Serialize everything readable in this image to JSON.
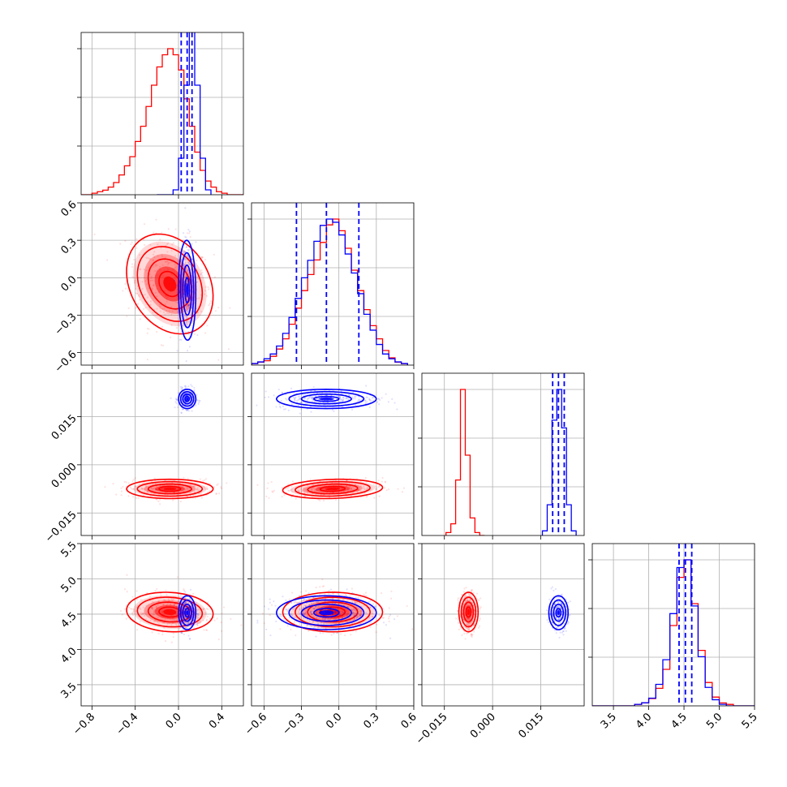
{
  "chart_data": {
    "type": "corner",
    "grid": true,
    "colors": {
      "series_a": "#ff0000",
      "series_b": "#0000ff"
    },
    "parameters": [
      {
        "ticks": [
          -0.8,
          -0.4,
          0.0,
          0.4
        ],
        "tick_labels": [
          "−0.8",
          "−0.4",
          "0.0",
          "0.4"
        ],
        "range": [
          -0.9,
          0.6
        ]
      },
      {
        "ticks": [
          -0.6,
          -0.3,
          0.0,
          0.3,
          0.6
        ],
        "tick_labels": [
          "−0.6",
          "−0.3",
          "0.0",
          "0.3",
          "0.6"
        ],
        "range": [
          -0.7,
          0.6
        ]
      },
      {
        "ticks": [
          -0.015,
          0.0,
          0.015
        ],
        "tick_labels": [
          "−0.015",
          "0.000",
          "0.015"
        ],
        "range": [
          -0.022,
          0.0285
        ]
      },
      {
        "ticks": [
          3.5,
          4.0,
          4.5,
          5.0,
          5.5
        ],
        "tick_labels": [
          "3.5",
          "4.0",
          "4.5",
          "5.0",
          "5.5"
        ],
        "range": [
          3.2,
          5.5
        ]
      }
    ],
    "series": [
      {
        "color": "#ff0000",
        "means": [
          -0.08,
          -0.05,
          -0.0075,
          4.53
        ],
        "stds": [
          0.2,
          0.2,
          0.0015,
          0.14
        ],
        "covariance_offdiag": [
          [
            0,
            1,
            -0.25
          ],
          [
            0,
            3,
            -0.1
          ],
          [
            1,
            2,
            0.15
          ]
        ],
        "histograms": [
          {
            "edges": [
              -0.9,
              -0.85,
              -0.8,
              -0.75,
              -0.7,
              -0.65,
              -0.6,
              -0.55,
              -0.5,
              -0.45,
              -0.4,
              -0.35,
              -0.3,
              -0.25,
              -0.2,
              -0.15,
              -0.1,
              -0.05,
              0.0,
              0.05,
              0.1,
              0.15,
              0.2,
              0.25,
              0.3,
              0.35,
              0.4,
              0.45,
              0.5,
              0.55,
              0.6
            ],
            "counts": [
              0,
              0,
              1,
              2,
              3,
              5,
              8,
              13,
              19,
              25,
              35,
              45,
              58,
              72,
              84,
              92,
              96,
              92,
              82,
              63,
              45,
              28,
              16,
              9,
              5,
              2,
              1,
              0,
              0,
              0
            ]
          },
          {
            "edges": [
              -0.7,
              -0.65,
              -0.6,
              -0.55,
              -0.5,
              -0.45,
              -0.4,
              -0.35,
              -0.3,
              -0.25,
              -0.2,
              -0.15,
              -0.1,
              -0.05,
              0.0,
              0.05,
              0.1,
              0.15,
              0.2,
              0.25,
              0.3,
              0.35,
              0.4,
              0.45,
              0.5,
              0.55
            ],
            "counts": [
              1,
              2,
              3,
              6,
              11,
              18,
              28,
              39,
              51,
              62,
              72,
              84,
              96,
              100,
              92,
              80,
              65,
              51,
              38,
              27,
              18,
              10,
              5,
              2,
              1
            ]
          },
          {
            "edges": [
              -0.0145,
              -0.013,
              -0.0115,
              -0.01,
              -0.0085,
              -0.007,
              -0.0055,
              -0.004,
              -0.0025
            ],
            "counts": [
              2,
              8,
              38,
              100,
              55,
              12,
              2,
              0
            ]
          },
          {
            "edges": [
              3.2,
              3.3,
              3.4,
              3.5,
              3.6,
              3.7,
              3.8,
              3.9,
              4.0,
              4.1,
              4.2,
              4.3,
              4.4,
              4.5,
              4.6,
              4.7,
              4.8,
              4.9,
              5.0,
              5.1,
              5.2,
              5.3,
              5.4,
              5.5
            ],
            "counts": [
              0,
              0,
              0,
              0,
              0,
              0,
              1,
              2,
              5,
              12,
              25,
              55,
              88,
              100,
              70,
              38,
              16,
              6,
              2,
              1,
              0,
              0,
              0
            ]
          }
        ]
      },
      {
        "color": "#0000ff",
        "means": [
          0.08,
          -0.1,
          0.0205,
          4.52
        ],
        "stds": [
          0.04,
          0.2,
          0.0015,
          0.12
        ],
        "quantiles": [
          [
            0.025,
            0.08,
            0.125
          ],
          [
            -0.34,
            -0.1,
            0.16
          ],
          [
            0.0187,
            0.0205,
            0.0223
          ],
          [
            4.43,
            4.52,
            4.61
          ]
        ],
        "covariance_offdiag": [
          [
            0,
            1,
            -0.05
          ]
        ],
        "histograms": [
          {
            "edges": [
              -0.2,
              -0.15,
              -0.1,
              -0.05,
              0.0,
              0.05,
              0.1,
              0.15,
              0.2,
              0.25,
              0.3
            ],
            "counts": [
              0,
              0,
              0,
              2,
              15,
              45,
              75,
              45,
              15,
              2
            ]
          },
          {
            "edges": [
              -0.7,
              -0.65,
              -0.6,
              -0.55,
              -0.5,
              -0.45,
              -0.4,
              -0.35,
              -0.3,
              -0.25,
              -0.2,
              -0.15,
              -0.1,
              -0.05,
              0.0,
              0.05,
              0.1,
              0.15,
              0.2,
              0.25,
              0.3,
              0.35,
              0.4,
              0.45,
              0.5,
              0.55
            ],
            "counts": [
              1,
              2,
              4,
              7,
              12,
              20,
              30,
              42,
              55,
              66,
              78,
              88,
              92,
              90,
              82,
              70,
              58,
              45,
              32,
              22,
              13,
              7,
              4,
              2,
              1
            ]
          },
          {
            "edges": [
              0.0155,
              0.017,
              0.0185,
              0.02,
              0.0215,
              0.023,
              0.0245,
              0.026
            ],
            "counts": [
              3,
              20,
              75,
              95,
              70,
              20,
              3
            ]
          },
          {
            "edges": [
              3.2,
              3.3,
              3.4,
              3.5,
              3.6,
              3.7,
              3.8,
              3.9,
              4.0,
              4.1,
              4.2,
              4.3,
              4.4,
              4.5,
              4.6,
              4.7,
              4.8,
              4.9,
              5.0,
              5.1,
              5.2,
              5.3,
              5.4,
              5.5
            ],
            "counts": [
              0,
              0,
              0,
              0,
              0,
              0,
              1,
              2,
              5,
              14,
              30,
              60,
              90,
              95,
              65,
              32,
              12,
              4,
              1,
              0,
              0,
              0,
              0
            ]
          }
        ]
      }
    ]
  }
}
